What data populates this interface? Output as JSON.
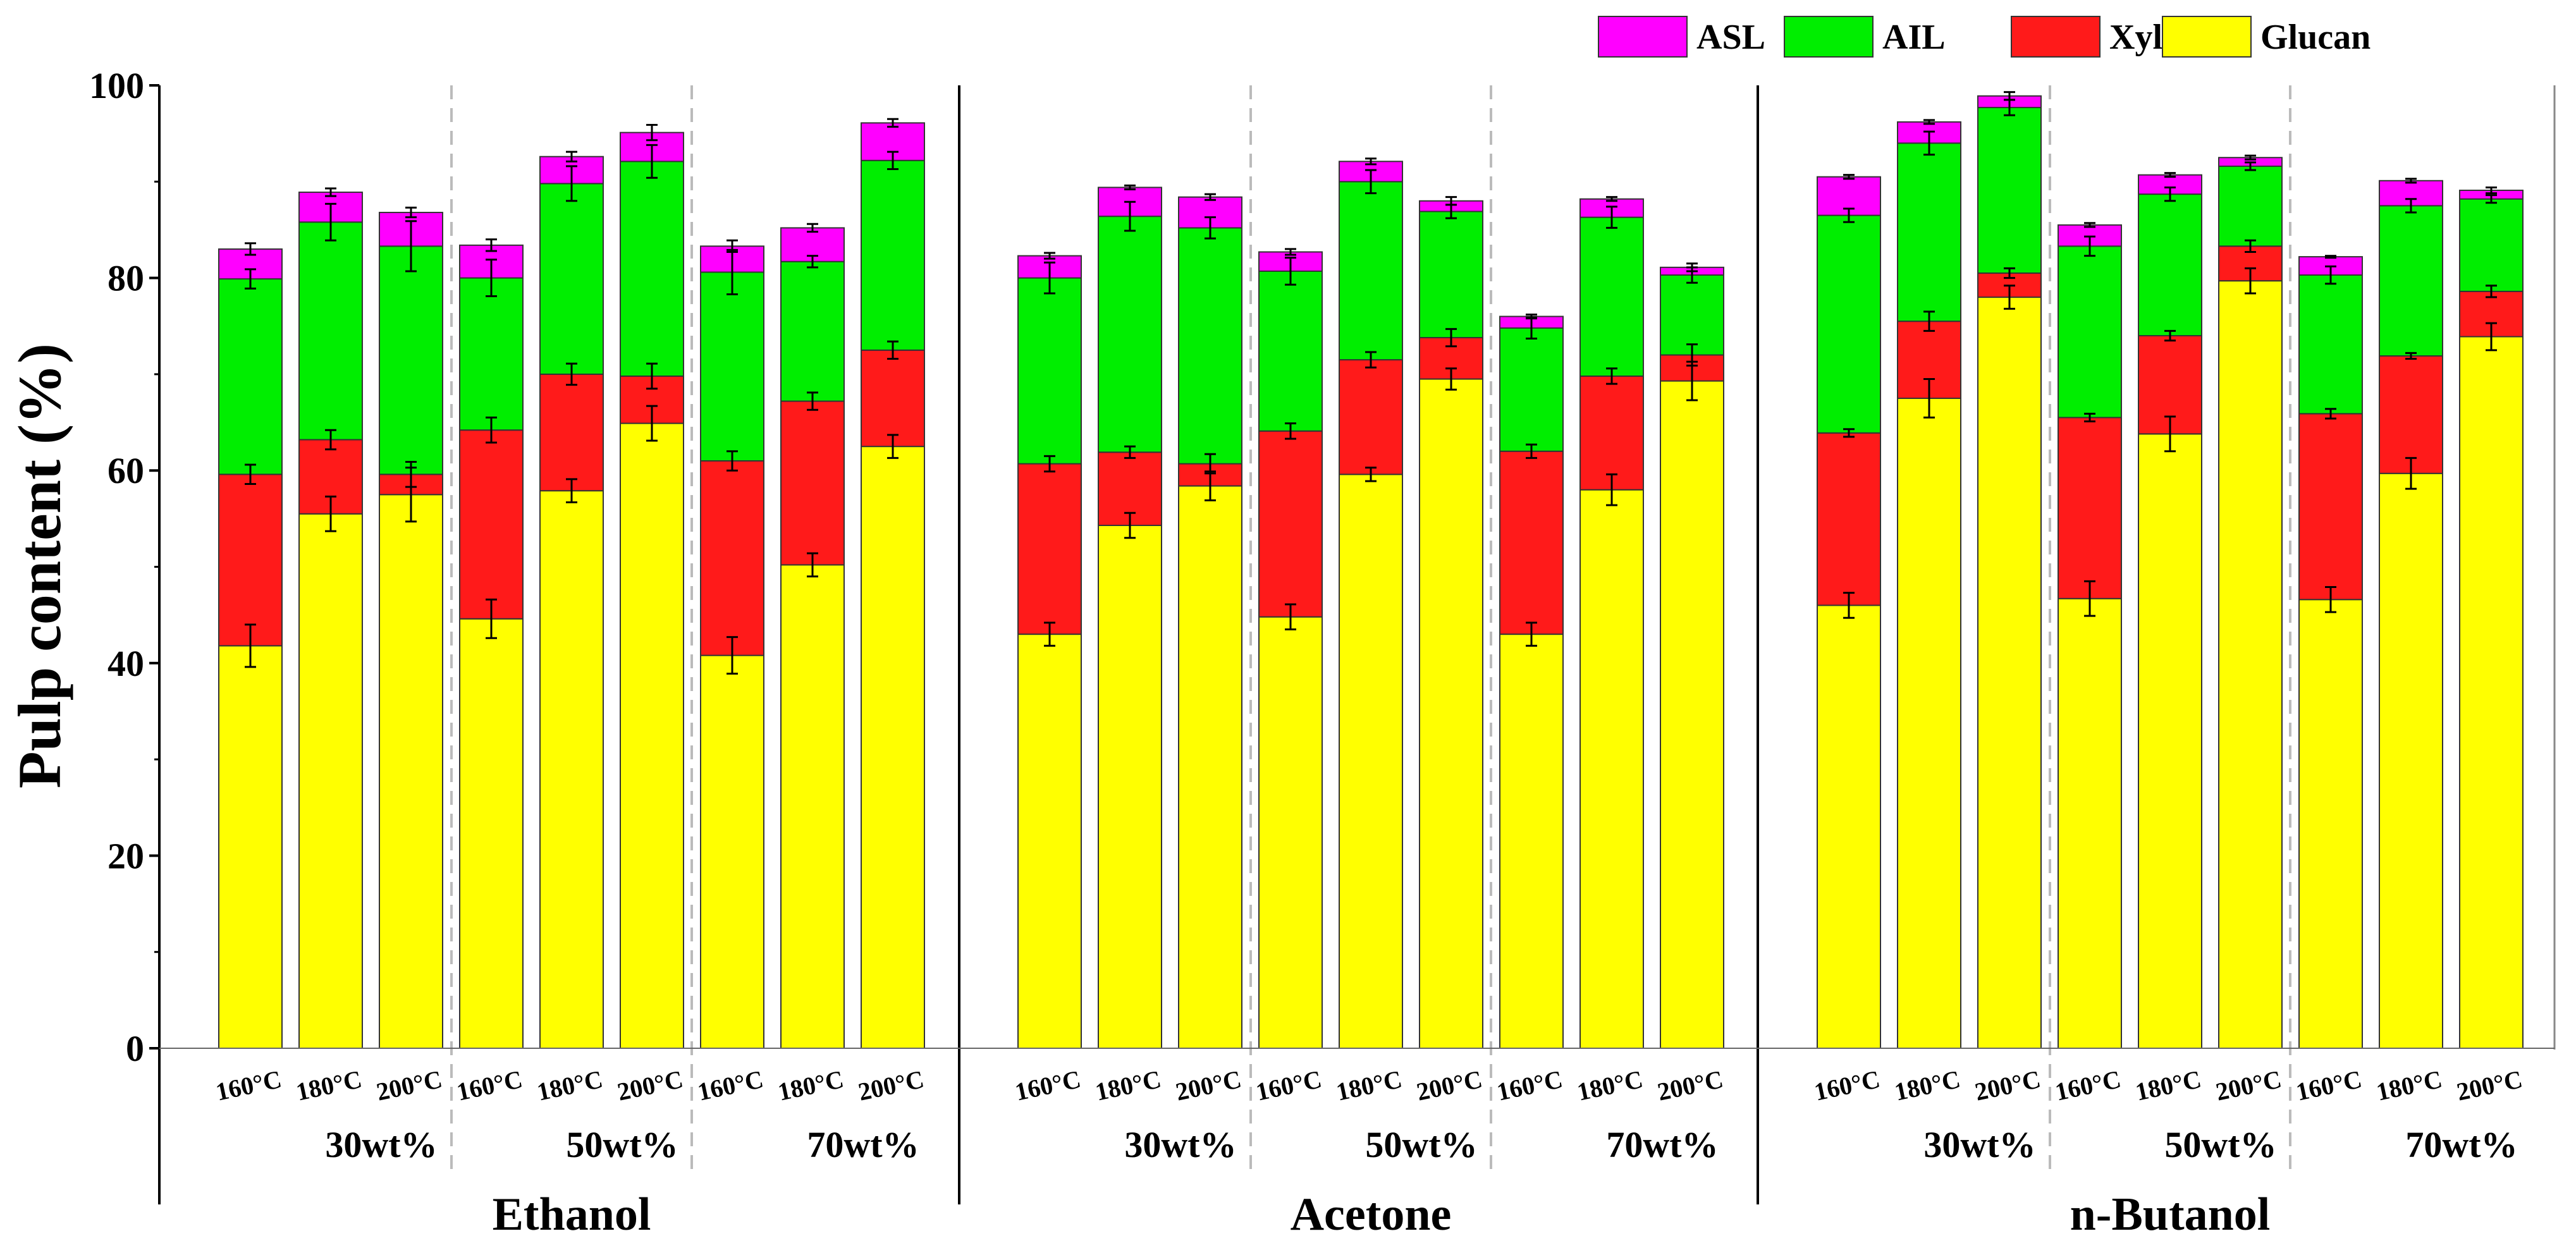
{
  "chart_data": {
    "type": "stacked-bar",
    "ylabel": "Pulp content (%)",
    "ylim": [
      0,
      100
    ],
    "yticks": [
      0,
      20,
      40,
      60,
      80,
      100
    ],
    "legend_position": "top-right",
    "components": [
      {
        "key": "glucan",
        "name": "Glucan",
        "color": "#ffff00"
      },
      {
        "key": "xylan",
        "name": "Xylan",
        "color": "#ff1a1a"
      },
      {
        "key": "ail",
        "name": "AIL",
        "color": "#00ee00"
      },
      {
        "key": "asl",
        "name": "ASL",
        "color": "#ff00ff"
      }
    ],
    "legend_order": [
      "asl",
      "ail",
      "xylan",
      "glucan"
    ],
    "temperatures": [
      "160°C",
      "180°C",
      "200°C"
    ],
    "concentrations": [
      "30wt%",
      "50wt%",
      "70wt%"
    ],
    "solvents": [
      {
        "name": "Ethanol",
        "bars": [
          {
            "glucan": 41.8,
            "xylan": 59.6,
            "ail": 79.9,
            "asl": 83.0,
            "err": {
              "glucan": 2.2,
              "xylan": 1.0,
              "ail": 1.0,
              "asl": 0.6
            }
          },
          {
            "glucan": 55.5,
            "xylan": 63.2,
            "ail": 85.8,
            "asl": 88.9,
            "err": {
              "glucan": 1.8,
              "xylan": 1.0,
              "ail": 1.9,
              "asl": 0.4
            }
          },
          {
            "glucan": 57.5,
            "xylan": 59.6,
            "ail": 83.3,
            "asl": 86.8,
            "err": {
              "glucan": 2.8,
              "xylan": 1.3,
              "ail": 2.6,
              "asl": 0.5
            }
          },
          {
            "glucan": 44.6,
            "xylan": 64.2,
            "ail": 80.0,
            "asl": 83.4,
            "err": {
              "glucan": 2.0,
              "xylan": 1.3,
              "ail": 1.9,
              "asl": 0.6
            }
          },
          {
            "glucan": 57.9,
            "xylan": 70.0,
            "ail": 89.8,
            "asl": 92.6,
            "err": {
              "glucan": 1.2,
              "xylan": 1.1,
              "ail": 1.8,
              "asl": 0.5
            }
          },
          {
            "glucan": 64.9,
            "xylan": 69.8,
            "ail": 92.1,
            "asl": 95.1,
            "err": {
              "glucan": 1.8,
              "xylan": 1.3,
              "ail": 1.7,
              "asl": 0.8
            }
          },
          {
            "glucan": 40.8,
            "xylan": 61.0,
            "ail": 80.6,
            "asl": 83.3,
            "err": {
              "glucan": 1.9,
              "xylan": 1.0,
              "ail": 2.3,
              "asl": 0.6
            }
          },
          {
            "glucan": 50.2,
            "xylan": 67.2,
            "ail": 81.7,
            "asl": 85.2,
            "err": {
              "glucan": 1.2,
              "xylan": 0.9,
              "ail": 0.6,
              "asl": 0.4
            }
          },
          {
            "glucan": 62.5,
            "xylan": 72.5,
            "ail": 92.2,
            "asl": 96.1,
            "err": {
              "glucan": 1.2,
              "xylan": 0.9,
              "ail": 0.9,
              "asl": 0.4
            }
          }
        ]
      },
      {
        "name": "Acetone",
        "bars": [
          {
            "glucan": 43.0,
            "xylan": 60.7,
            "ail": 80.0,
            "asl": 82.3,
            "err": {
              "glucan": 1.2,
              "xylan": 0.8,
              "ail": 1.6,
              "asl": 0.3
            }
          },
          {
            "glucan": 54.3,
            "xylan": 61.9,
            "ail": 86.4,
            "asl": 89.4,
            "err": {
              "glucan": 1.3,
              "xylan": 0.6,
              "ail": 1.5,
              "asl": 0.2
            }
          },
          {
            "glucan": 58.4,
            "xylan": 60.7,
            "ail": 85.2,
            "asl": 88.4,
            "err": {
              "glucan": 1.5,
              "xylan": 1.0,
              "ail": 1.1,
              "asl": 0.3
            }
          },
          {
            "glucan": 44.8,
            "xylan": 64.1,
            "ail": 80.7,
            "asl": 82.7,
            "err": {
              "glucan": 1.3,
              "xylan": 0.8,
              "ail": 1.4,
              "asl": 0.3
            }
          },
          {
            "glucan": 59.6,
            "xylan": 71.5,
            "ail": 90.0,
            "asl": 92.1,
            "err": {
              "glucan": 0.7,
              "xylan": 0.8,
              "ail": 1.2,
              "asl": 0.3
            }
          },
          {
            "glucan": 69.5,
            "xylan": 73.8,
            "ail": 86.9,
            "asl": 88.0,
            "err": {
              "glucan": 1.1,
              "xylan": 0.9,
              "ail": 0.7,
              "asl": 0.4
            }
          },
          {
            "glucan": 43.0,
            "xylan": 62.0,
            "ail": 74.8,
            "asl": 76.0,
            "err": {
              "glucan": 1.2,
              "xylan": 0.7,
              "ail": 1.1,
              "asl": 0.2
            }
          },
          {
            "glucan": 58.0,
            "xylan": 69.8,
            "ail": 86.3,
            "asl": 88.2,
            "err": {
              "glucan": 1.6,
              "xylan": 0.8,
              "ail": 1.1,
              "asl": 0.2
            }
          },
          {
            "glucan": 69.3,
            "xylan": 72.0,
            "ail": 80.3,
            "asl": 81.1,
            "err": {
              "glucan": 2.0,
              "xylan": 1.1,
              "ail": 0.8,
              "asl": 0.4
            }
          }
        ]
      },
      {
        "name": "n-Butanol",
        "bars": [
          {
            "glucan": 46.0,
            "xylan": 63.9,
            "ail": 86.5,
            "asl": 90.5,
            "err": {
              "glucan": 1.3,
              "xylan": 0.4,
              "ail": 0.7,
              "asl": 0.2
            }
          },
          {
            "glucan": 67.5,
            "xylan": 75.5,
            "ail": 94.0,
            "asl": 96.2,
            "err": {
              "glucan": 2.0,
              "xylan": 1.0,
              "ail": 1.2,
              "asl": 0.2
            }
          },
          {
            "glucan": 78.0,
            "xylan": 80.5,
            "ail": 97.7,
            "asl": 98.9,
            "err": {
              "glucan": 1.2,
              "xylan": 0.5,
              "ail": 0.8,
              "asl": 0.4
            }
          },
          {
            "glucan": 46.7,
            "xylan": 65.5,
            "ail": 83.3,
            "asl": 85.5,
            "err": {
              "glucan": 1.8,
              "xylan": 0.4,
              "ail": 1.0,
              "asl": 0.2
            }
          },
          {
            "glucan": 63.8,
            "xylan": 74.0,
            "ail": 88.7,
            "asl": 90.7,
            "err": {
              "glucan": 1.8,
              "xylan": 0.5,
              "ail": 0.7,
              "asl": 0.2
            }
          },
          {
            "glucan": 79.7,
            "xylan": 83.3,
            "ail": 91.6,
            "asl": 92.5,
            "err": {
              "glucan": 1.3,
              "xylan": 0.6,
              "ail": 0.4,
              "asl": 0.2
            }
          },
          {
            "glucan": 46.6,
            "xylan": 65.9,
            "ail": 80.3,
            "asl": 82.2,
            "err": {
              "glucan": 1.3,
              "xylan": 0.5,
              "ail": 0.9,
              "asl": 0.1
            }
          },
          {
            "glucan": 59.7,
            "xylan": 71.9,
            "ail": 87.5,
            "asl": 90.1,
            "err": {
              "glucan": 1.6,
              "xylan": 0.3,
              "ail": 0.7,
              "asl": 0.2
            }
          },
          {
            "glucan": 73.9,
            "xylan": 78.6,
            "ail": 88.2,
            "asl": 89.1,
            "err": {
              "glucan": 1.4,
              "xylan": 0.6,
              "ail": 0.4,
              "asl": 0.3
            }
          }
        ]
      }
    ]
  }
}
